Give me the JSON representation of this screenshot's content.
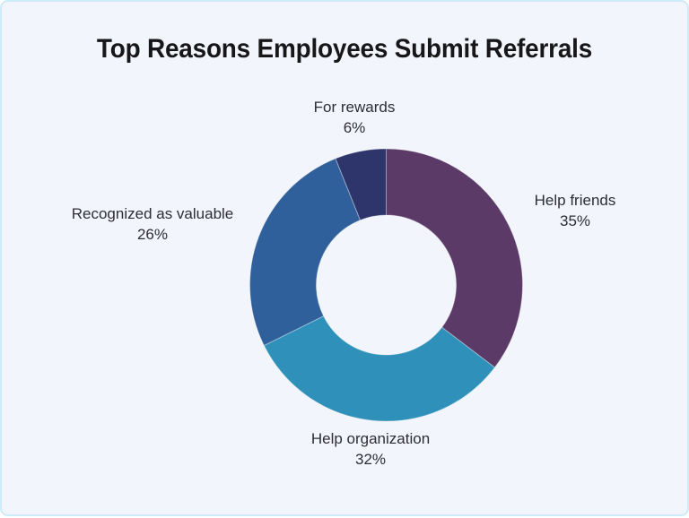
{
  "title": "Top Reasons Employees Submit Referrals",
  "chart_data": {
    "type": "pie",
    "subtype": "donut",
    "title": "Top Reasons Employees Submit Referrals",
    "unit": "%",
    "direction": "clockwise",
    "start_angle_deg": 0,
    "donut_hole_ratio": 0.51,
    "legend_position": "none",
    "labels": "outside",
    "segments": [
      {
        "label": "Help friends",
        "value": 35,
        "pct": "35%",
        "color": "#5b3a68"
      },
      {
        "label": "Help organization",
        "value": 32,
        "pct": "32%",
        "color": "#2f90b9"
      },
      {
        "label": "Recognized as valuable",
        "value": 26,
        "pct": "26%",
        "color": "#30609b"
      },
      {
        "label": "For rewards",
        "value": 6,
        "pct": "6%",
        "color": "#2e356b"
      }
    ]
  },
  "theme": {
    "background": "#f2f6fc",
    "border": "#cdebf8",
    "title_color": "#17171a",
    "label_color": "#2e2d33",
    "slice_separator": "rgba(255,255,255,0.35)"
  }
}
